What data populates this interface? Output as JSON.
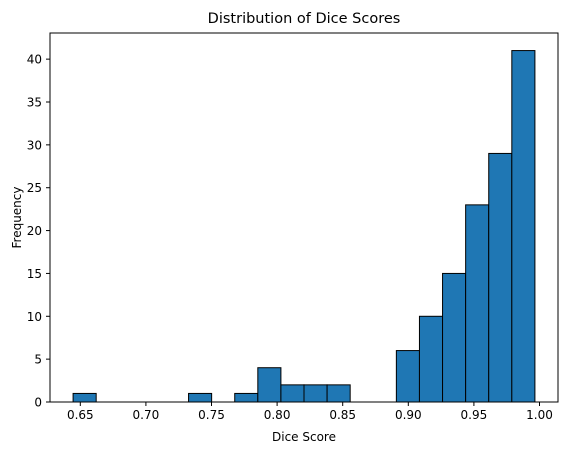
{
  "chart_data": {
    "type": "bar",
    "title": "Distribution of Dice Scores",
    "xlabel": "Dice Score",
    "ylabel": "Frequency",
    "bin_edges": [
      0.6445,
      0.6621,
      0.6797,
      0.6973,
      0.7149,
      0.7325,
      0.7501,
      0.7677,
      0.7853,
      0.8029,
      0.8205,
      0.8381,
      0.8557,
      0.8733,
      0.8909,
      0.9085,
      0.9261,
      0.9437,
      0.9613,
      0.9789,
      0.9965
    ],
    "values": [
      1,
      0,
      0,
      0,
      0,
      1,
      0,
      1,
      4,
      2,
      2,
      2,
      0,
      0,
      6,
      10,
      15,
      23,
      29,
      41
    ],
    "xlim": [
      0.6269,
      1.0141
    ],
    "ylim": [
      0,
      43.05
    ],
    "x_ticks": [
      0.65,
      0.7,
      0.75,
      0.8,
      0.85,
      0.9,
      0.95,
      1.0
    ],
    "x_tick_labels": [
      "0.65",
      "0.70",
      "0.75",
      "0.80",
      "0.85",
      "0.90",
      "0.95",
      "1.00"
    ],
    "y_ticks": [
      0,
      5,
      10,
      15,
      20,
      25,
      30,
      35,
      40
    ],
    "y_tick_labels": [
      "0",
      "5",
      "10",
      "15",
      "20",
      "25",
      "30",
      "35",
      "40"
    ],
    "bar_color": "#1f77b4",
    "edge_color": "#000000",
    "grid": false,
    "legend": "none"
  }
}
